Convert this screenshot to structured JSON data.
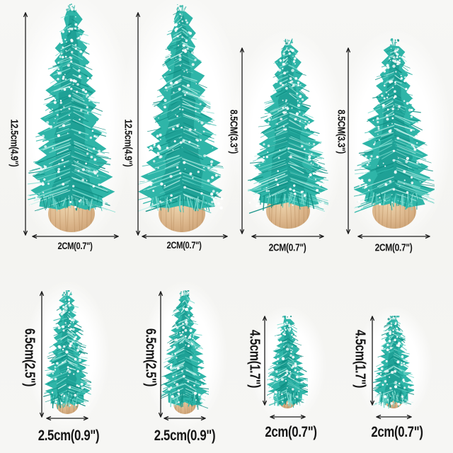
{
  "figure": {
    "kind": "product-size-diagram",
    "subject": "mini snow frosted bottle-brush pine trees with wooden bases"
  },
  "colors": {
    "foliage": "#2fb5a8",
    "foliage_dark": "#0f8e83",
    "foliage_light": "#7fdcd0",
    "foliage_pale": "#bff0e9",
    "snow": "#ffffff",
    "trunk": "#d9b287",
    "trunk_light": "#ecd2ab",
    "trunk_dark": "#c3996b",
    "trunk_grain": "#b08354",
    "dimension_lines": "#1e1e1e",
    "background": "#f5f5f3"
  },
  "trees": [
    {
      "id": "tree-1",
      "height_label": "12.5cm(4.9\")",
      "width_label": "2CM(0.7\")"
    },
    {
      "id": "tree-2",
      "height_label": "12.5cm(4.9\")",
      "width_label": "2CM(0.7\")"
    },
    {
      "id": "tree-3",
      "height_label": "8.5CM(3.3\")",
      "width_label": "2CM(0.7\")"
    },
    {
      "id": "tree-4",
      "height_label": "8.5CM(3.3\")",
      "width_label": "2CM(0.7\")"
    },
    {
      "id": "tree-5",
      "height_label": "6.5cm(2.5\")",
      "width_label": "2.5cm(0.9\")"
    },
    {
      "id": "tree-6",
      "height_label": "6.5cm(2.5\")",
      "width_label": "2.5cm(0.9\")"
    },
    {
      "id": "tree-7",
      "height_label": "4.5cm(1.7\")",
      "width_label": "2cm(0.7\")"
    },
    {
      "id": "tree-8",
      "height_label": "4.5cm(1.7\")",
      "width_label": "2cm(0.7\")"
    }
  ]
}
